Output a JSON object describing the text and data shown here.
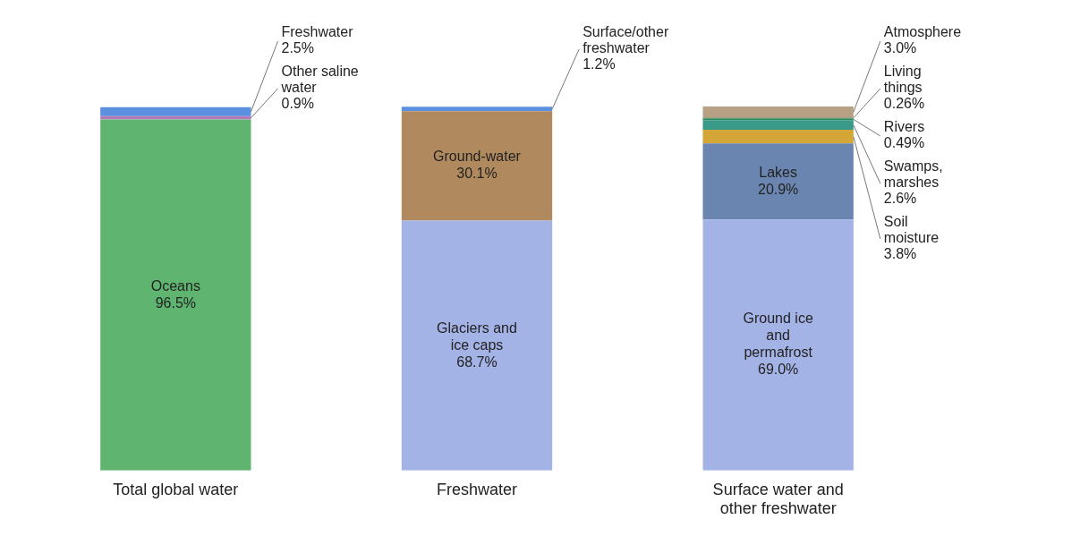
{
  "chart_data": {
    "type": "bar",
    "stacked": true,
    "categories": [
      "Total global water",
      "Freshwater",
      "Surface water and other freshwater"
    ],
    "series": [
      {
        "name": "Oceans",
        "color": "#5fb56f",
        "values": [
          96.5,
          null,
          null
        ],
        "value_labels": [
          "96.5%",
          null,
          null
        ]
      },
      {
        "name": "Other saline water",
        "color": "#b27bb8",
        "values": [
          0.9,
          null,
          null
        ],
        "value_labels": [
          "0.9%",
          null,
          null
        ]
      },
      {
        "name": "Freshwater",
        "color": "#5b8fe0",
        "values": [
          2.5,
          null,
          null
        ],
        "value_labels": [
          "2.5%",
          null,
          null
        ]
      },
      {
        "name": "Glaciers and ice caps",
        "color": "#a4b3e6",
        "values": [
          null,
          68.7,
          null
        ],
        "value_labels": [
          null,
          "68.7%",
          null
        ]
      },
      {
        "name": "Ground-water",
        "color": "#b08a5e",
        "values": [
          null,
          30.1,
          null
        ],
        "value_labels": [
          null,
          "30.1%",
          null
        ]
      },
      {
        "name": "Surface/other freshwater",
        "color": "#5b8fe0",
        "values": [
          null,
          1.2,
          null
        ],
        "value_labels": [
          null,
          "1.2%",
          null
        ]
      },
      {
        "name": "Ground ice and permafrost",
        "color": "#a4b3e6",
        "values": [
          null,
          null,
          69.0
        ],
        "value_labels": [
          null,
          null,
          "69.0%"
        ]
      },
      {
        "name": "Lakes",
        "color": "#6a86b0",
        "values": [
          null,
          null,
          20.9
        ],
        "value_labels": [
          null,
          null,
          "20.9%"
        ]
      },
      {
        "name": "Soil moisture",
        "color": "#d4a537",
        "values": [
          null,
          null,
          3.8
        ],
        "value_labels": [
          null,
          null,
          "3.8%"
        ]
      },
      {
        "name": "Swamps, marshes",
        "color": "#3a9a8a",
        "values": [
          null,
          null,
          2.6
        ],
        "value_labels": [
          null,
          null,
          "2.6%"
        ]
      },
      {
        "name": "Rivers",
        "color": "#2e8b57",
        "values": [
          null,
          null,
          0.49
        ],
        "value_labels": [
          null,
          null,
          "0.49%"
        ]
      },
      {
        "name": "Living things",
        "color": "#7a8a6a",
        "values": [
          null,
          null,
          0.26
        ],
        "value_labels": [
          null,
          null,
          "0.26%"
        ]
      },
      {
        "name": "Atmosphere",
        "color": "#b8a084",
        "values": [
          null,
          null,
          3.0
        ],
        "value_labels": [
          null,
          null,
          "3.0%"
        ]
      }
    ],
    "legend": false,
    "grid": false,
    "tick_labels": "x"
  }
}
